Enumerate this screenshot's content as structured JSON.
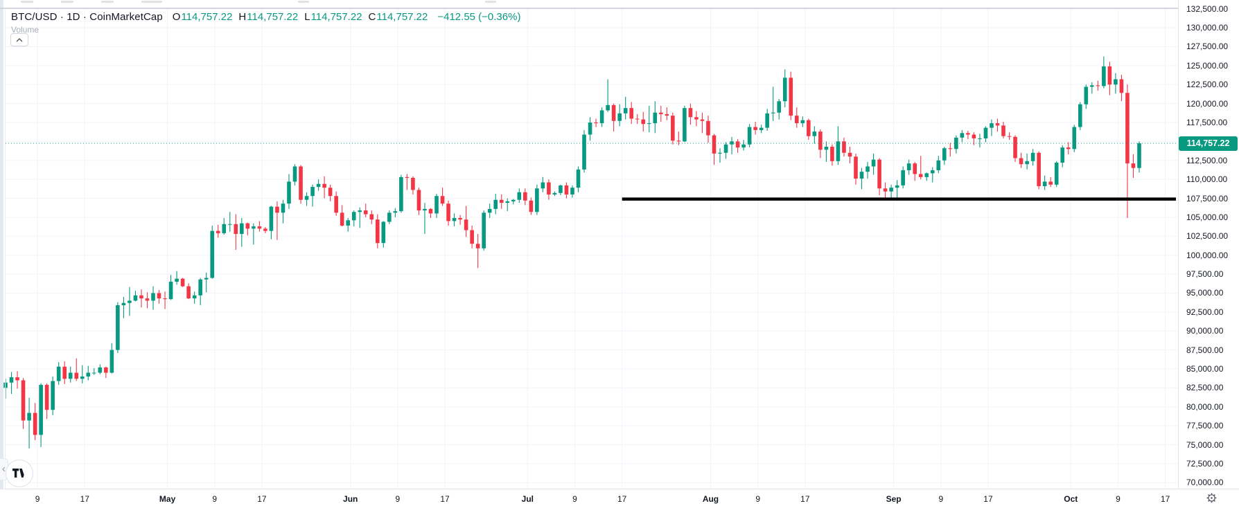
{
  "header": {
    "symbol": "BTC/USD",
    "sep": "·",
    "interval": "1D",
    "source": "CoinMarketCap",
    "ohlc": {
      "o_label": "O",
      "o": "114,757.22",
      "h_label": "H",
      "h": "114,757.22",
      "l_label": "L",
      "l": "114,757.22",
      "c_label": "C",
      "c": "114,757.22"
    },
    "change": "−412.55 (−0.36%)"
  },
  "indicator": {
    "volume_label": "Volume",
    "collapse_icon": "chevron-up-icon"
  },
  "colors": {
    "up": "#089981",
    "down": "#f23645",
    "support_line": "#000000",
    "grid": "#f0f3fa",
    "axis_text": "#131722",
    "muted_text": "#a8adb8",
    "badge_bg": "#089981",
    "badge_text": "#ffffff"
  },
  "chart_data": {
    "type": "candlestick",
    "title": "BTC/USD · 1D · CoinMarketCap",
    "grid": true,
    "legend_position": "top-left",
    "price_axis": {
      "min": 70000,
      "max": 132500,
      "step": 2500,
      "labels": [
        "132,500.00",
        "130,000.00",
        "127,500.00",
        "125,000.00",
        "122,500.00",
        "120,000.00",
        "117,500.00",
        "115,000.00",
        "112,500.00",
        "110,000.00",
        "107,500.00",
        "105,000.00",
        "102,500.00",
        "100,000.00",
        "97,500.00",
        "95,000.00",
        "92,500.00",
        "90,000.00",
        "87,500.00",
        "85,000.00",
        "82,500.00",
        "80,000.00",
        "77,500.00",
        "75,000.00",
        "72,500.00",
        "70,000.00"
      ]
    },
    "time_labels": [
      {
        "text": "9",
        "day_index": 6
      },
      {
        "text": "17",
        "day_index": 14
      },
      {
        "text": "May",
        "day_index": 28
      },
      {
        "text": "9",
        "day_index": 36
      },
      {
        "text": "17",
        "day_index": 44
      },
      {
        "text": "Jun",
        "day_index": 59
      },
      {
        "text": "9",
        "day_index": 67
      },
      {
        "text": "17",
        "day_index": 75
      },
      {
        "text": "Jul",
        "day_index": 89
      },
      {
        "text": "9",
        "day_index": 97
      },
      {
        "text": "17",
        "day_index": 105
      },
      {
        "text": "Aug",
        "day_index": 120
      },
      {
        "text": "9",
        "day_index": 128
      },
      {
        "text": "17",
        "day_index": 136
      },
      {
        "text": "Sep",
        "day_index": 151
      },
      {
        "text": "9",
        "day_index": 159
      },
      {
        "text": "17",
        "day_index": 167
      },
      {
        "text": "Oct",
        "day_index": 181
      },
      {
        "text": "9",
        "day_index": 189
      },
      {
        "text": "17",
        "day_index": 197
      }
    ],
    "last_price": 114757.22,
    "last_price_label": "114,757.22",
    "support_line": {
      "price": 107400,
      "from_day_index": 105
    },
    "candles": [
      [
        82500,
        83700,
        81100,
        83200
      ],
      [
        83200,
        84600,
        81700,
        83900
      ],
      [
        83900,
        84700,
        82400,
        83500
      ],
      [
        83500,
        83800,
        77100,
        78200
      ],
      [
        78200,
        81200,
        74500,
        79200
      ],
      [
        79200,
        80500,
        75600,
        76300
      ],
      [
        76300,
        83100,
        74700,
        82900
      ],
      [
        82900,
        83100,
        78400,
        79600
      ],
      [
        79600,
        84000,
        78900,
        83400
      ],
      [
        83400,
        85900,
        82900,
        85300
      ],
      [
        85300,
        86000,
        83000,
        83700
      ],
      [
        83700,
        85300,
        83200,
        84500
      ],
      [
        84500,
        86400,
        83400,
        83700
      ],
      [
        83700,
        85500,
        83100,
        84000
      ],
      [
        84000,
        85400,
        83500,
        84500
      ],
      [
        84500,
        85100,
        84200,
        84500
      ],
      [
        84500,
        85600,
        84300,
        85200
      ],
      [
        85200,
        85300,
        83800,
        84500
      ],
      [
        84500,
        88400,
        84400,
        87500
      ],
      [
        87500,
        93800,
        87100,
        93400
      ],
      [
        93400,
        94500,
        91700,
        93700
      ],
      [
        93700,
        95800,
        92000,
        94000
      ],
      [
        94000,
        95300,
        93900,
        94700
      ],
      [
        94700,
        95500,
        93100,
        94300
      ],
      [
        94300,
        95100,
        93000,
        94000
      ],
      [
        94000,
        95900,
        92800,
        95000
      ],
      [
        95000,
        95400,
        93600,
        94300
      ],
      [
        94300,
        95200,
        92900,
        94200
      ],
      [
        94200,
        97400,
        94100,
        96500
      ],
      [
        96500,
        97900,
        96100,
        96900
      ],
      [
        96900,
        97000,
        95800,
        95900
      ],
      [
        95900,
        96300,
        94200,
        94300
      ],
      [
        94300,
        95200,
        93600,
        94700
      ],
      [
        94700,
        97000,
        93400,
        96800
      ],
      [
        96800,
        97700,
        95100,
        97000
      ],
      [
        97000,
        103900,
        96900,
        103200
      ],
      [
        103200,
        104000,
        102300,
        102900
      ],
      [
        102900,
        104900,
        102700,
        104100
      ],
      [
        104100,
        105700,
        103100,
        104100
      ],
      [
        104100,
        105400,
        100700,
        102800
      ],
      [
        102800,
        104900,
        101100,
        104200
      ],
      [
        104200,
        104300,
        102600,
        103500
      ],
      [
        103500,
        104200,
        101400,
        103800
      ],
      [
        103800,
        104500,
        103100,
        103500
      ],
      [
        103500,
        103700,
        102900,
        103200
      ],
      [
        103200,
        106500,
        102100,
        106400
      ],
      [
        106400,
        107100,
        102000,
        105600
      ],
      [
        105600,
        107300,
        104200,
        106800
      ],
      [
        106800,
        110700,
        106100,
        109700
      ],
      [
        109700,
        112000,
        109200,
        111700
      ],
      [
        111700,
        111900,
        106800,
        107300
      ],
      [
        107300,
        108300,
        106500,
        107800
      ],
      [
        107800,
        109300,
        106400,
        109000
      ],
      [
        109000,
        110000,
        108500,
        109400
      ],
      [
        109400,
        110400,
        107500,
        108900
      ],
      [
        108900,
        109300,
        107100,
        107800
      ],
      [
        107800,
        108400,
        105200,
        105600
      ],
      [
        105600,
        106600,
        103800,
        103900
      ],
      [
        103900,
        104900,
        103100,
        104600
      ],
      [
        104600,
        105900,
        103800,
        105700
      ],
      [
        105700,
        106300,
        103600,
        105900
      ],
      [
        105900,
        106800,
        105000,
        105400
      ],
      [
        105400,
        105900,
        104100,
        104700
      ],
      [
        104700,
        105400,
        100900,
        101600
      ],
      [
        101600,
        104500,
        101000,
        104400
      ],
      [
        104400,
        105900,
        104100,
        105600
      ],
      [
        105600,
        106200,
        105000,
        105800
      ],
      [
        105800,
        110600,
        105600,
        110300
      ],
      [
        110300,
        110700,
        108600,
        110200
      ],
      [
        110200,
        110400,
        108000,
        108600
      ],
      [
        108600,
        108900,
        105300,
        105900
      ],
      [
        105900,
        106900,
        102800,
        106100
      ],
      [
        106100,
        106200,
        104900,
        105500
      ],
      [
        105500,
        108100,
        104900,
        107800
      ],
      [
        107800,
        108900,
        106500,
        106800
      ],
      [
        106800,
        107200,
        103900,
        104500
      ],
      [
        104500,
        105500,
        103800,
        104900
      ],
      [
        104900,
        105300,
        104000,
        104700
      ],
      [
        104700,
        106500,
        102400,
        103300
      ],
      [
        103300,
        103900,
        100900,
        101500
      ],
      [
        101500,
        102800,
        98300,
        100900
      ],
      [
        100900,
        105900,
        100600,
        105600
      ],
      [
        105600,
        106800,
        104900,
        106100
      ],
      [
        106100,
        108100,
        105400,
        107300
      ],
      [
        107300,
        108000,
        106100,
        106900
      ],
      [
        106900,
        107500,
        105800,
        107100
      ],
      [
        107100,
        107400,
        106700,
        107300
      ],
      [
        107300,
        108800,
        106900,
        108300
      ],
      [
        108300,
        108800,
        106600,
        107200
      ],
      [
        107200,
        107600,
        105300,
        105700
      ],
      [
        105700,
        109300,
        105300,
        108800
      ],
      [
        108800,
        110300,
        108300,
        109600
      ],
      [
        109600,
        110000,
        107300,
        108000
      ],
      [
        108000,
        108400,
        107800,
        108200
      ],
      [
        108200,
        109300,
        107900,
        109200
      ],
      [
        109200,
        109600,
        107500,
        108000
      ],
      [
        108000,
        109200,
        107600,
        108900
      ],
      [
        108900,
        111700,
        108300,
        111300
      ],
      [
        111300,
        116500,
        110900,
        115900
      ],
      [
        115900,
        118200,
        115100,
        117500
      ],
      [
        117500,
        118000,
        116900,
        117400
      ],
      [
        117400,
        119500,
        116900,
        119100
      ],
      [
        119100,
        123200,
        118900,
        119800
      ],
      [
        119800,
        120000,
        116300,
        117700
      ],
      [
        117700,
        119900,
        117000,
        118700
      ],
      [
        118700,
        120900,
        117900,
        119400
      ],
      [
        119400,
        120200,
        117300,
        118000
      ],
      [
        118000,
        118600,
        117300,
        117900
      ],
      [
        117900,
        118900,
        116300,
        117300
      ],
      [
        117300,
        119700,
        116200,
        117400
      ],
      [
        117400,
        120300,
        116100,
        118800
      ],
      [
        118800,
        119700,
        117600,
        118600
      ],
      [
        118600,
        119500,
        117800,
        118400
      ],
      [
        118400,
        118800,
        114600,
        115100
      ],
      [
        115100,
        116300,
        114500,
        115000
      ],
      [
        115000,
        119700,
        114900,
        119400
      ],
      [
        119400,
        120000,
        117200,
        118200
      ],
      [
        118200,
        119000,
        117000,
        117900
      ],
      [
        117900,
        118800,
        116100,
        117700
      ],
      [
        117700,
        118400,
        114800,
        115800
      ],
      [
        115800,
        116000,
        111900,
        113400
      ],
      [
        113400,
        114100,
        112200,
        113500
      ],
      [
        113500,
        114900,
        112700,
        114600
      ],
      [
        114600,
        115600,
        113300,
        115000
      ],
      [
        115000,
        115300,
        113500,
        114200
      ],
      [
        114200,
        115200,
        113800,
        114600
      ],
      [
        114600,
        117300,
        114200,
        116900
      ],
      [
        116900,
        117600,
        115900,
        116500
      ],
      [
        116500,
        117200,
        116100,
        116800
      ],
      [
        116800,
        119300,
        116400,
        118700
      ],
      [
        118700,
        122200,
        117700,
        118800
      ],
      [
        118800,
        120600,
        117900,
        120300
      ],
      [
        120300,
        124500,
        119500,
        123400
      ],
      [
        123400,
        124200,
        117800,
        118400
      ],
      [
        118400,
        119500,
        116800,
        117400
      ],
      [
        117400,
        118300,
        116900,
        117800
      ],
      [
        117800,
        118000,
        115200,
        115700
      ],
      [
        115700,
        117000,
        114700,
        116300
      ],
      [
        116300,
        116600,
        112800,
        113900
      ],
      [
        113900,
        115000,
        112300,
        114300
      ],
      [
        114300,
        114600,
        111800,
        112400
      ],
      [
        112400,
        117000,
        111900,
        115000
      ],
      [
        115000,
        115500,
        113000,
        113500
      ],
      [
        113500,
        114300,
        112100,
        113000
      ],
      [
        113000,
        113400,
        109300,
        110100
      ],
      [
        110100,
        111500,
        108700,
        111000
      ],
      [
        111000,
        112300,
        110100,
        111700
      ],
      [
        111700,
        113400,
        110600,
        112600
      ],
      [
        112600,
        112800,
        107900,
        108800
      ],
      [
        108800,
        109600,
        107400,
        108400
      ],
      [
        108400,
        109300,
        107300,
        108900
      ],
      [
        108900,
        109900,
        107200,
        109200
      ],
      [
        109200,
        111700,
        108800,
        111200
      ],
      [
        111200,
        112600,
        110600,
        112100
      ],
      [
        112100,
        112300,
        109800,
        110700
      ],
      [
        110700,
        113100,
        110000,
        110300
      ],
      [
        110300,
        110900,
        109800,
        110800
      ],
      [
        110800,
        111600,
        109600,
        111200
      ],
      [
        111200,
        113100,
        110800,
        112500
      ],
      [
        112500,
        114300,
        111900,
        114100
      ],
      [
        114100,
        114800,
        113000,
        114000
      ],
      [
        114000,
        115800,
        113400,
        115500
      ],
      [
        115500,
        116500,
        114900,
        116100
      ],
      [
        116100,
        116400,
        115300,
        115900
      ],
      [
        115900,
        116200,
        114500,
        115400
      ],
      [
        115400,
        116000,
        114200,
        115400
      ],
      [
        115400,
        117000,
        114900,
        116800
      ],
      [
        116800,
        117900,
        115700,
        117400
      ],
      [
        117400,
        118000,
        116300,
        117100
      ],
      [
        117100,
        117600,
        115400,
        115700
      ],
      [
        115700,
        116200,
        115200,
        115600
      ],
      [
        115600,
        115800,
        112300,
        112800
      ],
      [
        112800,
        113500,
        111500,
        112000
      ],
      [
        112000,
        113400,
        111300,
        112400
      ],
      [
        112400,
        114000,
        111800,
        113500
      ],
      [
        113500,
        113700,
        108700,
        109100
      ],
      [
        109100,
        110500,
        108600,
        109700
      ],
      [
        109700,
        110300,
        109000,
        109300
      ],
      [
        109300,
        112400,
        109000,
        112200
      ],
      [
        112200,
        114500,
        111600,
        114200
      ],
      [
        114200,
        114900,
        113300,
        114000
      ],
      [
        114000,
        117200,
        113600,
        116900
      ],
      [
        116900,
        120200,
        116500,
        119900
      ],
      [
        119900,
        122500,
        119300,
        122200
      ],
      [
        122200,
        122800,
        121300,
        122400
      ],
      [
        122400,
        123000,
        121700,
        122300
      ],
      [
        122300,
        126200,
        122000,
        124900
      ],
      [
        124900,
        125500,
        121100,
        122500
      ],
      [
        122500,
        124000,
        121300,
        123200
      ],
      [
        123200,
        123800,
        120300,
        121400
      ],
      [
        121400,
        122500,
        104900,
        112100
      ],
      [
        112100,
        113300,
        110200,
        111500
      ],
      [
        111500,
        115000,
        110900,
        114757.22
      ]
    ]
  }
}
